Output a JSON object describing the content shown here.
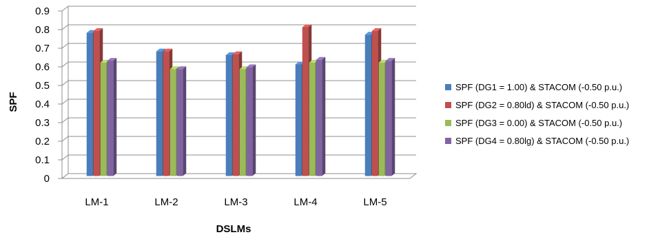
{
  "chart_data": {
    "type": "bar",
    "style": "3d-clustered-column",
    "categories": [
      "LM-1",
      "LM-2",
      "LM-3",
      "LM-4",
      "LM-5"
    ],
    "series": [
      {
        "name": "SPF (DG1 = 1.00) & STACOM (-0.50 p.u.)",
        "color": "#4a7ebb",
        "values": [
          0.77,
          0.67,
          0.65,
          0.6,
          0.76
        ]
      },
      {
        "name": "SPF (DG2 = 0.80ld) & STACOM (-0.50 p.u.)",
        "color": "#c0504d",
        "values": [
          0.78,
          0.67,
          0.655,
          0.8,
          0.78
        ]
      },
      {
        "name": "SPF (DG3 = 0.00) & STACOM (-0.50 p.u.)",
        "color": "#9bbb59",
        "values": [
          0.61,
          0.575,
          0.575,
          0.61,
          0.61
        ]
      },
      {
        "name": "SPF (DG4 = 0.80lg) & STACOM (-0.50 p.u.)",
        "color": "#8064a2",
        "values": [
          0.62,
          0.575,
          0.585,
          0.625,
          0.62
        ]
      }
    ],
    "y_ticks": [
      "0",
      "0.1",
      "0.2",
      "0.3",
      "0.4",
      "0.5",
      "0.6",
      "0.7",
      "0.8",
      "0.9"
    ],
    "xlabel": "DSLMs",
    "ylabel": "SPF",
    "ylim": [
      0,
      0.9
    ],
    "grid": true,
    "legend_position": "right"
  }
}
